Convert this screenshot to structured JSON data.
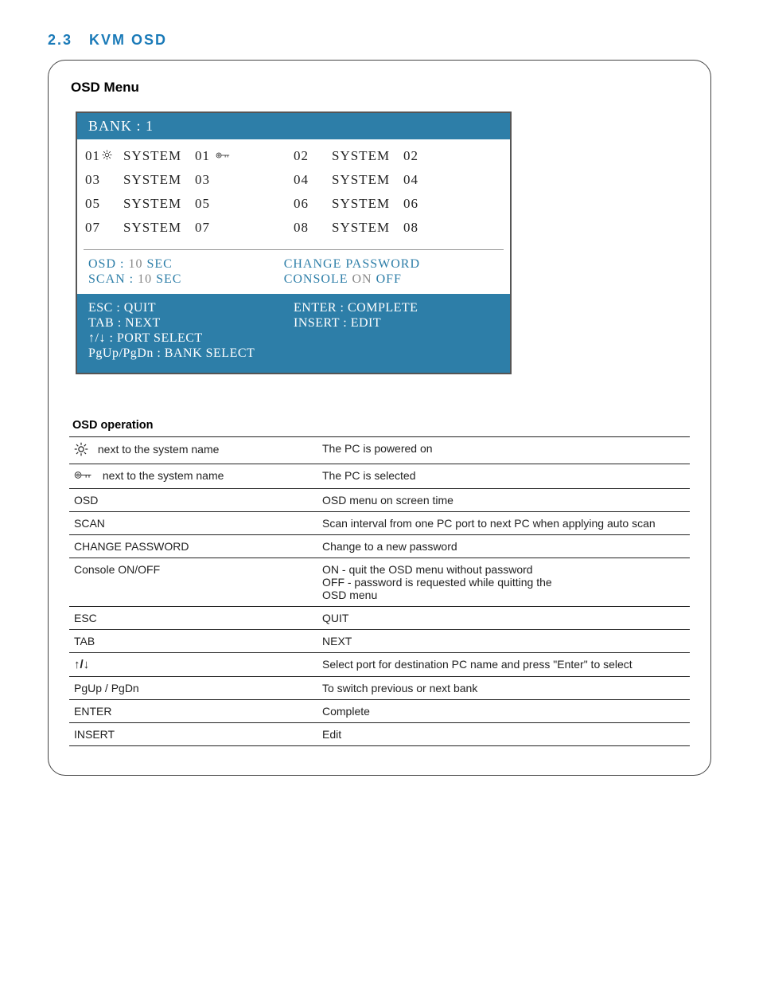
{
  "section": {
    "number": "2.3",
    "title": "KVM OSD"
  },
  "menu": {
    "title": "OSD Menu",
    "bank_label": "BANK : 1",
    "ports": [
      {
        "num": "01",
        "has_sun": true,
        "name": "SYSTEM",
        "tail": "01",
        "has_key": true
      },
      {
        "num": "02",
        "has_sun": false,
        "name": "SYSTEM",
        "tail": "02",
        "has_key": false
      },
      {
        "num": "03",
        "has_sun": false,
        "name": "SYSTEM",
        "tail": "03",
        "has_key": false
      },
      {
        "num": "04",
        "has_sun": false,
        "name": "SYSTEM",
        "tail": "04",
        "has_key": false
      },
      {
        "num": "05",
        "has_sun": false,
        "name": "SYSTEM",
        "tail": "05",
        "has_key": false
      },
      {
        "num": "06",
        "has_sun": false,
        "name": "SYSTEM",
        "tail": "06",
        "has_key": false
      },
      {
        "num": "07",
        "has_sun": false,
        "name": "SYSTEM",
        "tail": "07",
        "has_key": false
      },
      {
        "num": "08",
        "has_sun": false,
        "name": "SYSTEM",
        "tail": "08",
        "has_key": false
      }
    ],
    "options": {
      "osd_line": [
        "OSD : ",
        "10",
        "  SEC"
      ],
      "scan_line": [
        "SCAN : ",
        "10",
        "  SEC"
      ],
      "change_pw": "CHANGE  PASSWORD",
      "console_line": [
        "CONSOLE  ",
        "ON",
        "  OFF"
      ]
    },
    "footer": {
      "esc": "ESC : QUIT",
      "tab": "TAB  : NEXT",
      "enter": "ENTER : COMPLETE",
      "insert": "INSERT : EDIT",
      "arrows": "↑/↓  : PORT SELECT",
      "pgupdn": "PgUp/PgDn : BANK SELECT"
    },
    "styling": {
      "header_bg": "#2d7ea8",
      "header_fg": "#ffffff",
      "accent": "#2d7ea8",
      "border": "#555555",
      "text": "#222222",
      "divider": "#9a9a9a",
      "font_family": "Georgia, 'Times New Roman', serif",
      "font_size_pt": 13
    }
  },
  "ops": {
    "title": "OSD operation",
    "rows": [
      {
        "icon": "sun",
        "c1_suffix": "next to the system name",
        "c2": "The PC is powered on"
      },
      {
        "icon": "key",
        "c1_suffix": "next to the system name",
        "c2": "The PC is selected"
      },
      {
        "c1": "OSD",
        "c2": "OSD menu on screen time"
      },
      {
        "c1": "SCAN",
        "c2": "Scan interval from one PC port to next PC when applying auto scan"
      },
      {
        "c1": "CHANGE PASSWORD",
        "c2": "Change to a new password"
      },
      {
        "c1": "Console ON/OFF",
        "c2": "ON   - quit the OSD menu without password\nOFF - password is requested while quitting the\n         OSD menu"
      },
      {
        "c1": "ESC",
        "c2": "QUIT"
      },
      {
        "c1": "TAB",
        "c2": "NEXT"
      },
      {
        "icon": "arrows",
        "c2": "Select port for destination PC name and press \"Enter\" to select"
      },
      {
        "c1": "PgUp / PgDn",
        "c2": "To switch previous or next bank"
      },
      {
        "c1": "ENTER",
        "c2": "Complete"
      },
      {
        "c1": "INSERT",
        "c2": "Edit"
      }
    ],
    "styling": {
      "border_color": "#222222",
      "font_size_pt": 10.5,
      "text_color": "#222222"
    }
  },
  "colors": {
    "section_title": "#1a7ab8",
    "page_border": "#444444",
    "background": "#ffffff"
  }
}
